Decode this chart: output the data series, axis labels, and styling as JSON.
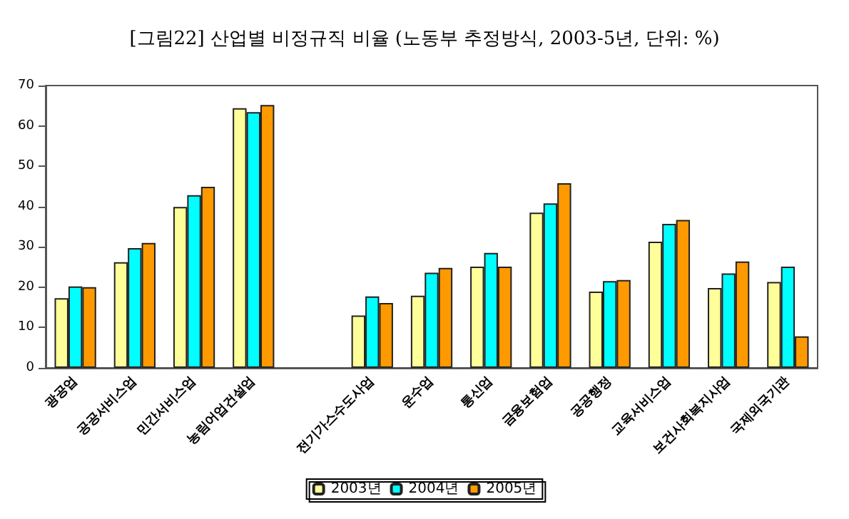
{
  "chart_data": {
    "type": "bar",
    "title": "[그림22] 산업별 비정규직 비율 (노동부 추정방식, 2003-5년, 단위: %)",
    "categories": [
      "광공업",
      "공공서비스업",
      "민간서비스업",
      "농림어업건설업",
      null,
      "전기가스수도사업",
      "운수업",
      "통신업",
      "금융보험업",
      "공공행정",
      "교육서비스업",
      "보건사회복지사업",
      "국제외국기관"
    ],
    "series": [
      {
        "name": "2003년",
        "color": "#ffff99",
        "values": [
          17.3,
          26.2,
          39.9,
          64.4,
          null,
          13.0,
          17.9,
          25.1,
          38.5,
          18.9,
          31.3,
          19.8,
          21.3
        ]
      },
      {
        "name": "2004년",
        "color": "#00ffff",
        "values": [
          20.2,
          29.7,
          42.8,
          63.4,
          null,
          17.7,
          23.6,
          28.5,
          40.8,
          21.5,
          35.7,
          23.4,
          25.1
        ]
      },
      {
        "name": "2005년",
        "color": "#ff9900",
        "values": [
          20.0,
          31.0,
          44.9,
          65.2,
          null,
          16.1,
          24.8,
          25.1,
          45.8,
          21.8,
          36.7,
          26.4,
          7.8
        ]
      }
    ],
    "ylim": [
      0,
      70
    ],
    "yticks": [
      0,
      10,
      20,
      30,
      40,
      50,
      60,
      70
    ],
    "grid": false,
    "legend": "bottom"
  }
}
